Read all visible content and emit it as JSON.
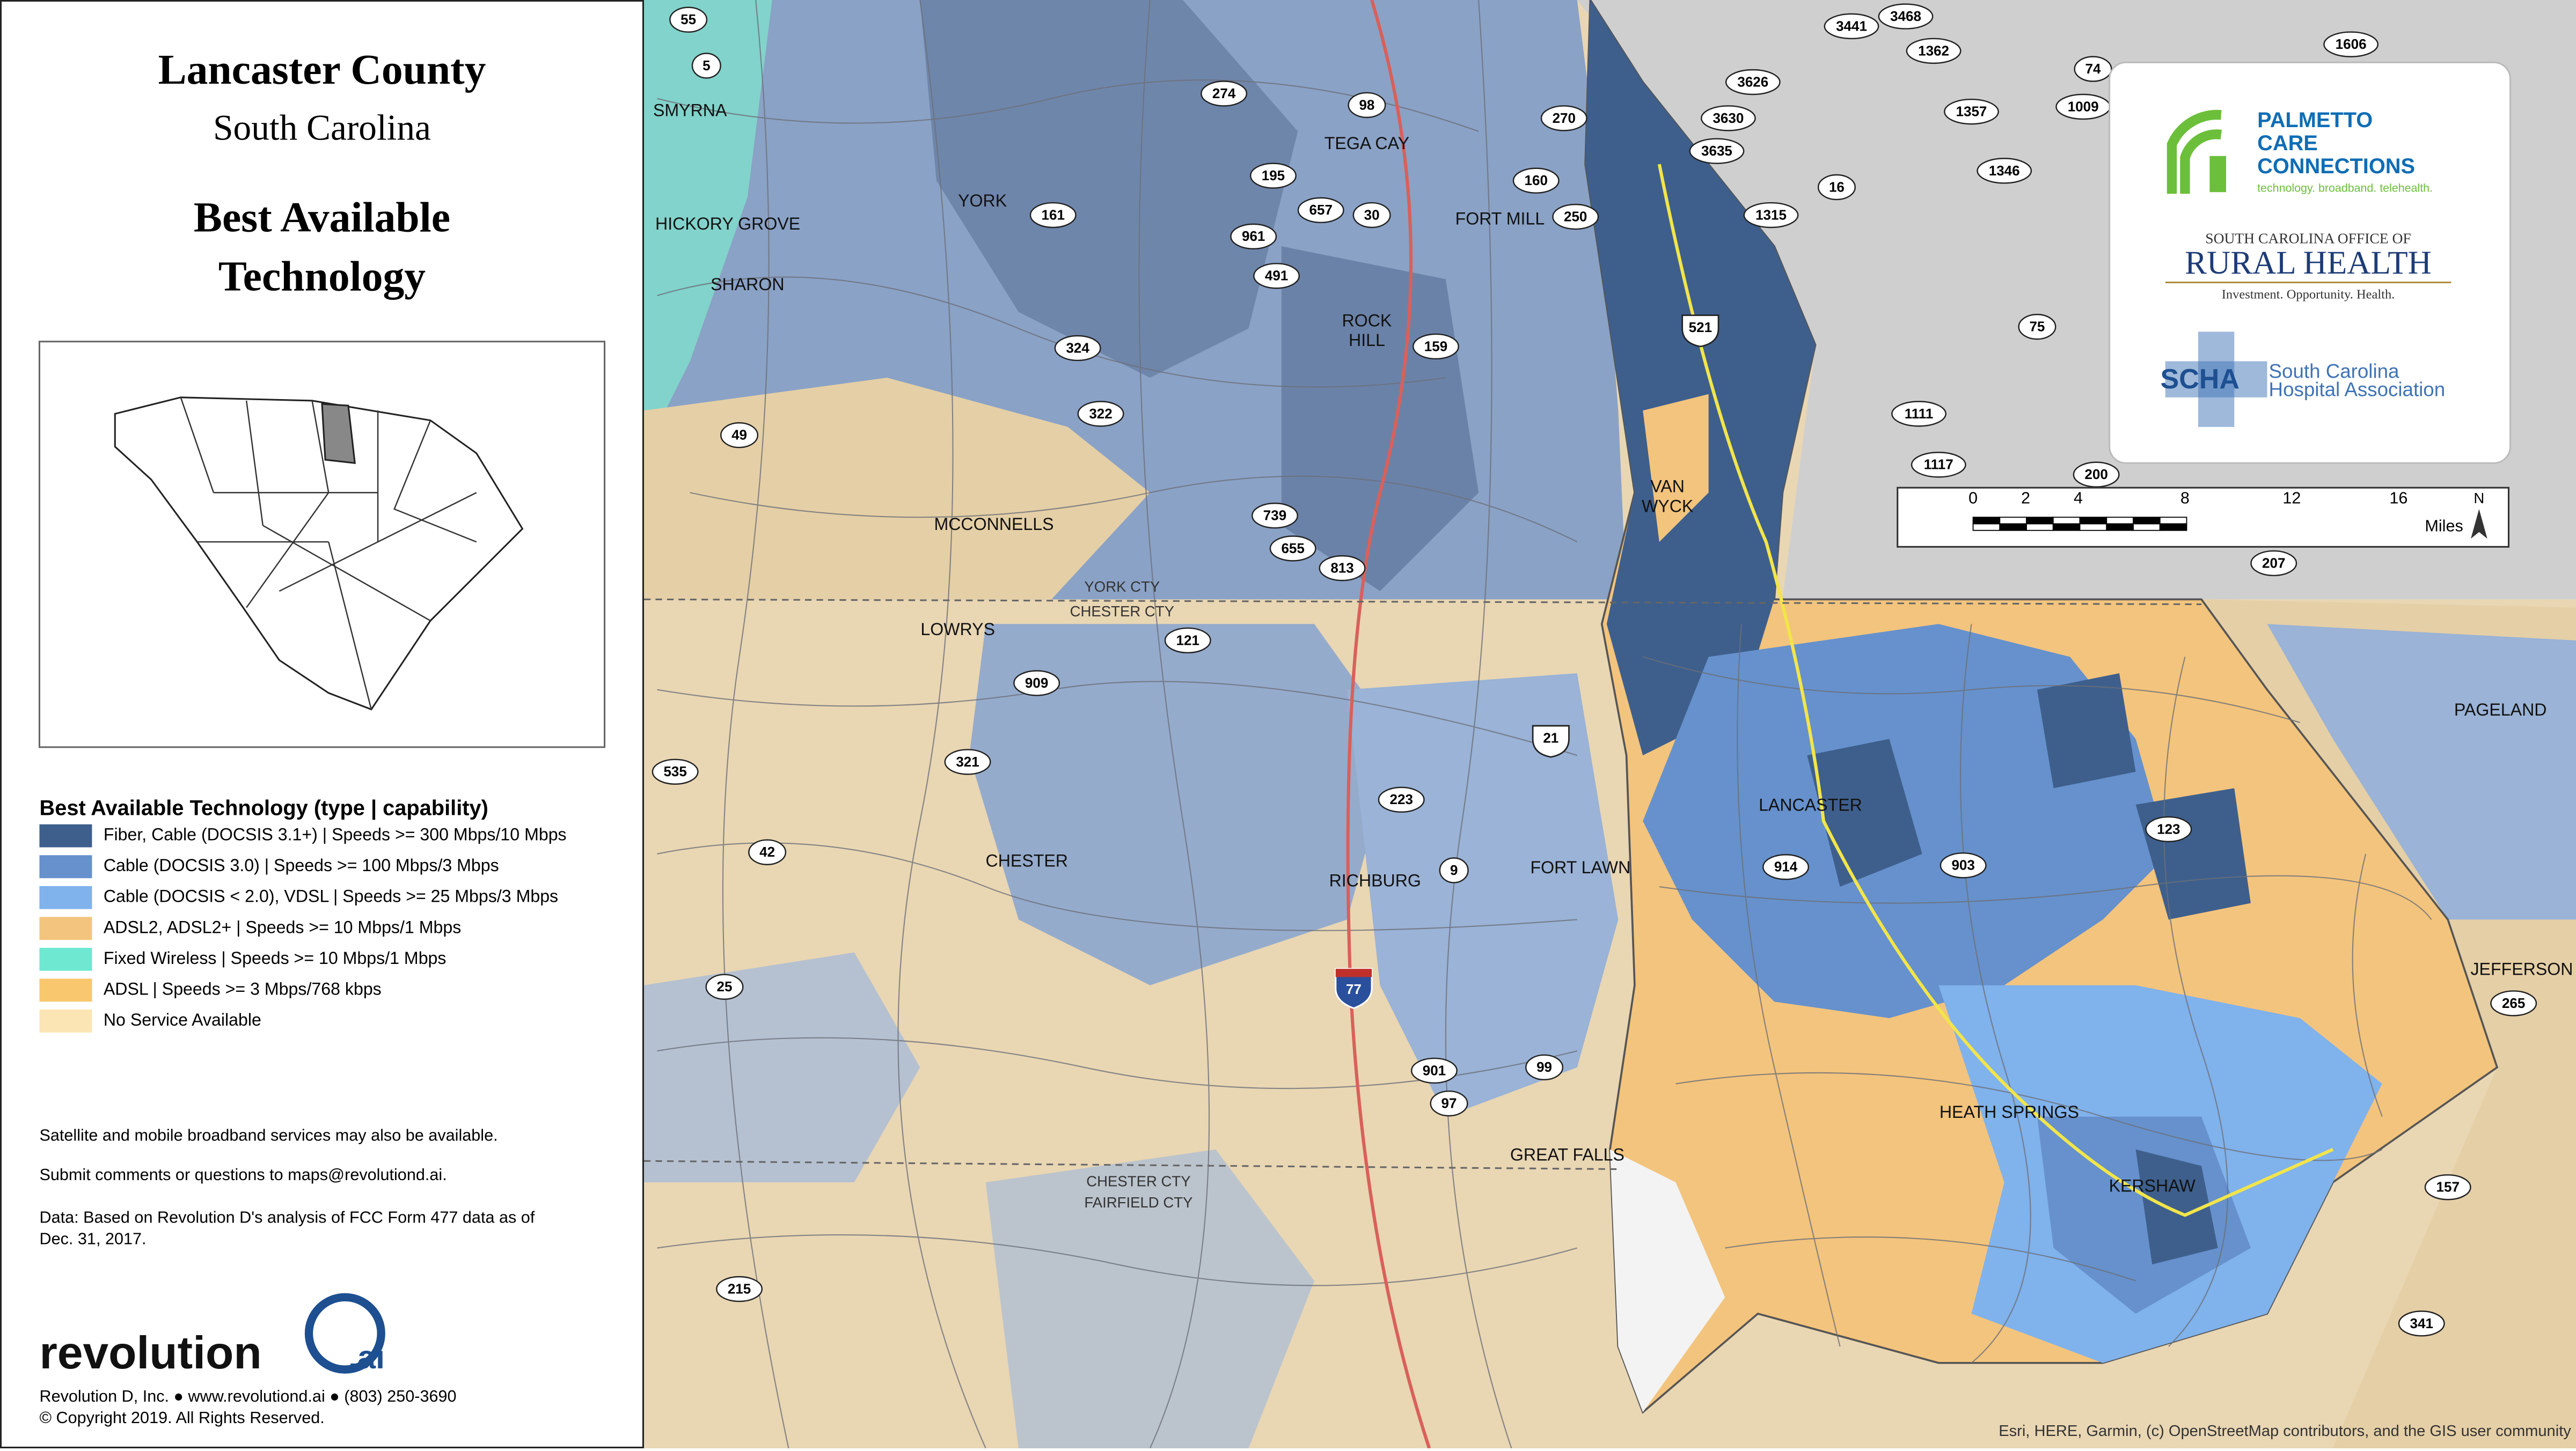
{
  "panel": {
    "title": "Lancaster County",
    "subtitle": "South Carolina",
    "heading": [
      "Best Available",
      "Technology"
    ]
  },
  "legend": {
    "title": "Best Available Technology (type | capability)",
    "items": [
      {
        "label": "Fiber, Cable (DOCSIS 3.1+) | Speeds >= 300 Mbps/10 Mbps",
        "color": "#3e5f8c"
      },
      {
        "label": "Cable (DOCSIS 3.0) | Speeds >= 100 Mbps/3 Mbps",
        "color": "#6691cc"
      },
      {
        "label": "Cable (DOCSIS < 2.0), VDSL | Speeds >= 25 Mbps/3 Mbps",
        "color": "#80b2ec"
      },
      {
        "label": "ADSL2, ADSL2+ | Speeds >= 10 Mbps/1 Mbps",
        "color": "#f3c47d"
      },
      {
        "label": "Fixed Wireless | Speeds >= 10 Mbps/1 Mbps",
        "color": "#6fe8d2"
      },
      {
        "label": " ADSL | Speeds >= 3 Mbps/768 kbps",
        "color": "#f8c76e"
      },
      {
        "label": "No Service Available",
        "color": "#fbe5b4"
      }
    ]
  },
  "notes": [
    "Satellite and mobile broadband services may also be available.",
    "Submit comments or questions to maps@revolutiond.ai.",
    "Data: Based on Revolution D's analysis of FCC Form 477 data as of",
    "Dec. 31, 2017."
  ],
  "footer": {
    "brand": "revolution",
    "brand_suffix": ".ai",
    "lines": [
      "Revolution D, Inc. ● www.revolutiond.ai ● (803) 250-3690",
      "© Copyright 2019. All Rights Reserved."
    ]
  },
  "logos": {
    "pcc": [
      "PALMETTO",
      "CARE",
      "CONNECTIONS",
      "technology. broadband. telehealth."
    ],
    "orh": [
      "SOUTH CAROLINA OFFICE OF",
      "RURAL HEALTH",
      "Investment. Opportunity. Health."
    ],
    "scha": [
      "SCHA",
      "South Carolina",
      "Hospital Association"
    ]
  },
  "scale": {
    "labels": [
      0,
      2,
      4,
      8,
      12,
      16
    ],
    "unit": "Miles",
    "north": "N"
  },
  "map": {
    "places": [
      "SMYRNA",
      "HICKORY GROVE",
      "SHARON",
      "YORK",
      "TEGA CAY",
      "FORT MILL",
      "ROCK",
      "HILL",
      "MCCONNELLS",
      "LOWRYS",
      "CHESTER",
      "RICHBURG",
      "FORT LAWN",
      "VAN",
      "WYCK",
      "LANCASTER",
      "HEATH SPRINGS",
      "KERSHAW",
      "GREAT FALLS",
      "PAGELAND",
      "JEFFERSON"
    ],
    "county_lines": [
      "YORK CTY",
      "CHESTER CTY",
      "CHESTER CTY",
      "FAIRFIELD CTY"
    ],
    "shields": [
      "55",
      "5",
      "274",
      "98",
      "270",
      "195",
      "657",
      "30",
      "161",
      "160",
      "250",
      "961",
      "491",
      "324",
      "159",
      "322",
      "49",
      "739",
      "655",
      "813",
      "121",
      "909",
      "321",
      "535",
      "42",
      "223",
      "9",
      "914",
      "903",
      "123",
      "25",
      "901",
      "97",
      "99",
      "215",
      "157",
      "341",
      "265",
      "200",
      "75",
      "1111",
      "1117",
      "207",
      "16",
      "1315",
      "1346",
      "1357",
      "1362",
      "3441",
      "3468",
      "3626",
      "3630",
      "3635",
      "1606",
      "74",
      "1009"
    ],
    "us_shields": [
      "521",
      "21"
    ],
    "interstate": "77",
    "attribution": "Esri, HERE, Garmin, (c) OpenStreetMap contributors, and the GIS user community"
  }
}
